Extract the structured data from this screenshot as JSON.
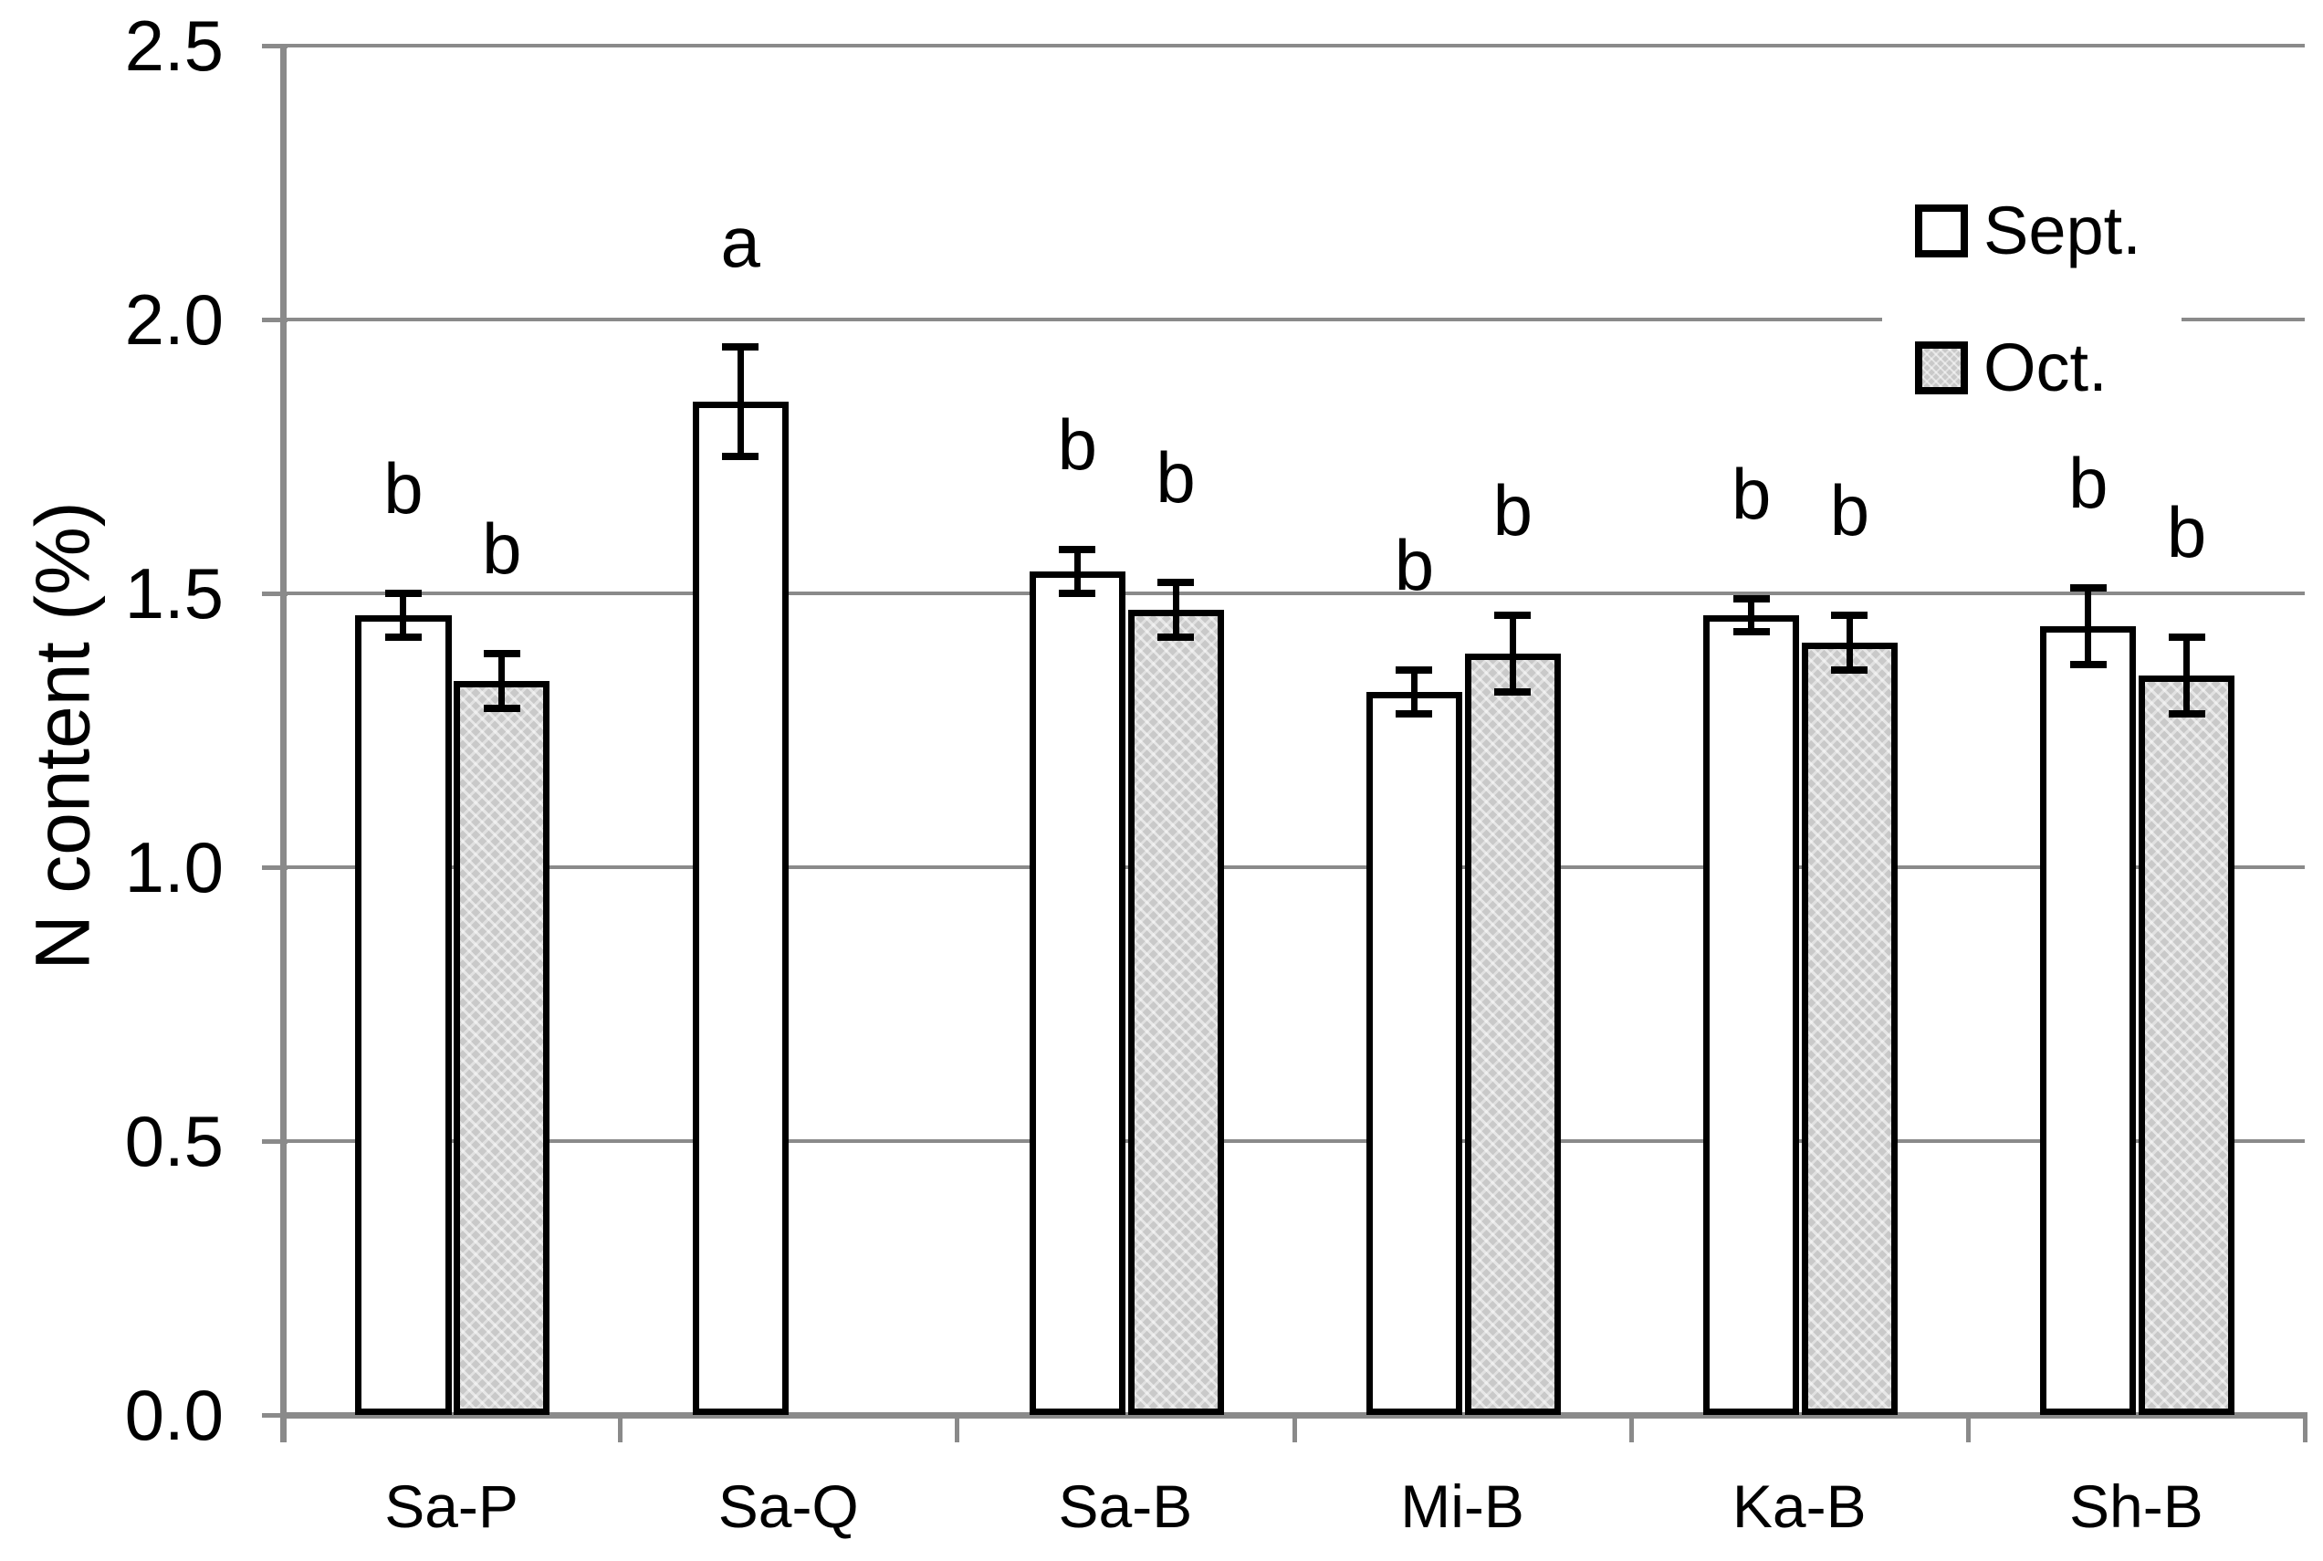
{
  "chart_data": {
    "type": "bar",
    "title": "",
    "ylabel": "N content (%)",
    "xlabel": "",
    "ylim": [
      0.0,
      2.5
    ],
    "ytick_labels": [
      "0.0",
      "0.5",
      "1.0",
      "1.5",
      "2.0",
      "2.5"
    ],
    "grid": true,
    "legend_position": "top-right-inside",
    "categories": [
      "Sa-P",
      "Sa-Q",
      "Sa-B",
      "Mi-B",
      "Ka-B",
      "Sh-B"
    ],
    "series": [
      {
        "name": "Sept.",
        "swatch": "white",
        "values": [
          1.46,
          1.85,
          1.54,
          1.32,
          1.46,
          1.44
        ],
        "errors": [
          0.04,
          0.1,
          0.04,
          0.04,
          0.03,
          0.07
        ],
        "sig_letters": [
          "b",
          "a",
          "b",
          "b",
          "b",
          "b"
        ]
      },
      {
        "name": "Oct.",
        "swatch": "gray-pattern",
        "values": [
          1.34,
          null,
          1.47,
          1.39,
          1.41,
          1.35
        ],
        "errors": [
          0.05,
          null,
          0.05,
          0.07,
          0.05,
          0.07
        ],
        "sig_letters": [
          "b",
          null,
          "b",
          "b",
          "b",
          "b"
        ]
      }
    ]
  },
  "colors": {
    "background": "#ffffff",
    "text": "#000000",
    "grid": "#8a8a8a",
    "axis": "#8a8a8a",
    "bar_border": "#000000",
    "sept_fill": "#ffffff",
    "oct_fill": "#c9c9c9",
    "error_bar": "#000000"
  }
}
